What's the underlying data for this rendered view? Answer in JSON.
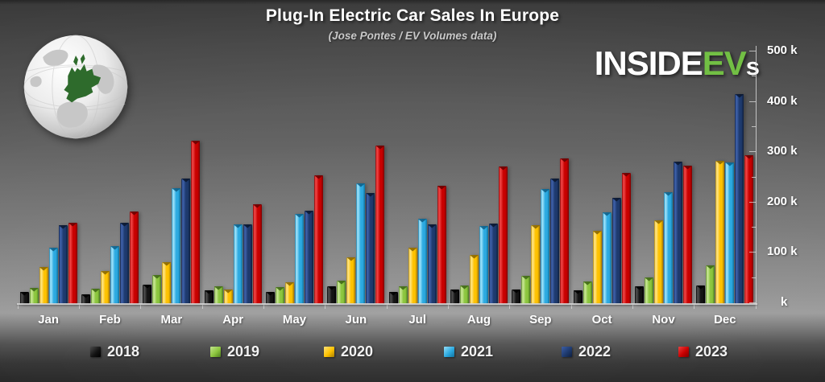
{
  "header": {
    "title": "Plug-In Electric Car Sales In Europe",
    "subtitle": "(Jose Pontes / EV Volumes data)"
  },
  "logo": {
    "part1": "INSIDE",
    "part2": "EV",
    "part3": "s"
  },
  "icons": {
    "globe": "globe-europe-highlighted"
  },
  "colors": {
    "logo_green": "#72bf44",
    "background_top": "#474747",
    "background_light": "#9d9d9d",
    "background_bottom": "#272727",
    "axis": "#d6d6d6",
    "label_text": "#ffffff"
  },
  "chart_data": {
    "type": "bar",
    "title": "Plug-In Electric Car Sales In Europe",
    "subtitle": "(Jose Pontes / EV Volumes data)",
    "unit": "thousands of vehicles",
    "grid": false,
    "legend_position": "bottom",
    "y_axis": {
      "side": "right",
      "min_k": 0,
      "max_k": 500,
      "major_step_k": 100,
      "minor_step_k": 50,
      "tick_labels": [
        "500 k",
        "400 k",
        "300 k",
        "200 k",
        "100 k",
        "k"
      ]
    },
    "categories": [
      "Jan",
      "Feb",
      "Mar",
      "Apr",
      "May",
      "Jun",
      "Jul",
      "Aug",
      "Sep",
      "Oct",
      "Nov",
      "Dec"
    ],
    "series": [
      {
        "name": "2018",
        "base": "#141414",
        "light": "#4a4a4a",
        "dark": "#000000",
        "cap": "#000000",
        "values_k": [
          24,
          19,
          38,
          27,
          24,
          35,
          24,
          28,
          29,
          27,
          35,
          37
        ]
      },
      {
        "name": "2019",
        "base": "#8cc63e",
        "light": "#c4e48e",
        "dark": "#4e7d1e",
        "cap": "#3f6716",
        "values_k": [
          32,
          31,
          58,
          35,
          34,
          47,
          35,
          36,
          56,
          45,
          52,
          77
        ]
      },
      {
        "name": "2020",
        "base": "#fec200",
        "light": "#ffe27a",
        "dark": "#a87e00",
        "cap": "#8a6700",
        "values_k": [
          73,
          66,
          83,
          28,
          43,
          93,
          112,
          97,
          157,
          145,
          166,
          285
        ]
      },
      {
        "name": "2021",
        "base": "#2caae1",
        "light": "#96def8",
        "dark": "#11739f",
        "cap": "#0e6189",
        "values_k": [
          112,
          115,
          230,
          158,
          179,
          240,
          169,
          155,
          228,
          183,
          222,
          282
        ]
      },
      {
        "name": "2022",
        "base": "#1e3a6e",
        "light": "#3c5ea6",
        "dark": "#0f1f3e",
        "cap": "#0b1830",
        "values_k": [
          156,
          161,
          250,
          159,
          185,
          221,
          158,
          160,
          250,
          211,
          283,
          417
        ]
      },
      {
        "name": "2023",
        "base": "#c80000",
        "light": "#ec4040",
        "dark": "#7e0000",
        "cap": "#690000",
        "values_k": [
          162,
          184,
          324,
          199,
          255,
          315,
          235,
          274,
          290,
          261,
          275,
          296
        ]
      }
    ]
  }
}
